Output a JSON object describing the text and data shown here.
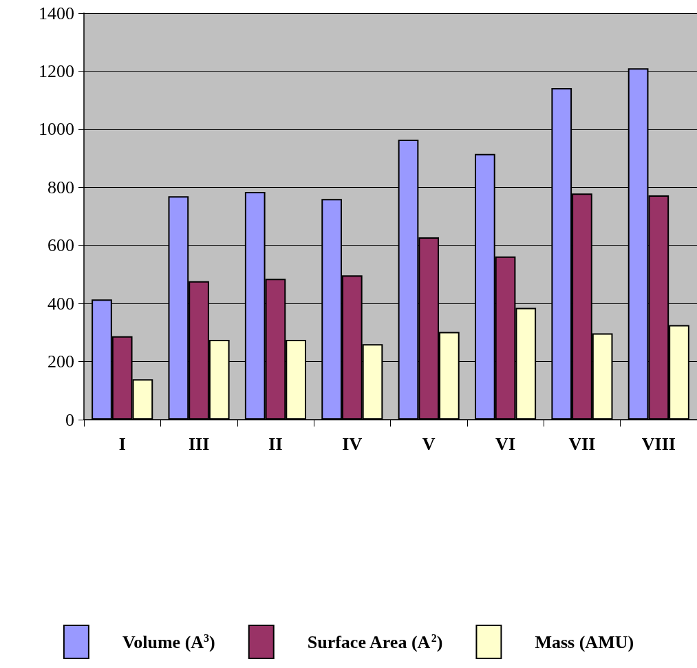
{
  "chart_data": {
    "type": "bar",
    "categories": [
      "I",
      "III",
      "II",
      "IV",
      "V",
      "VI",
      "VII",
      "VIII"
    ],
    "series": [
      {
        "name": "Volume (A$^{3}$)",
        "color": "#9999ff",
        "values": [
          414,
          769,
          784,
          760,
          964,
          915,
          1142,
          1210
        ]
      },
      {
        "name": "Surface Area (A$^{2}$)",
        "color": "#993366",
        "values": [
          287,
          477,
          485,
          497,
          628,
          562,
          779,
          772
        ]
      },
      {
        "name": "Mass (AMU)",
        "color": "#ffffcc",
        "values": [
          139,
          275,
          275,
          260,
          302,
          385,
          297,
          326
        ]
      }
    ],
    "ylim": [
      0,
      1400
    ],
    "yticks": [
      0,
      200,
      400,
      600,
      800,
      1000,
      1200,
      1400
    ],
    "grid": "y",
    "legend": "bottom"
  }
}
